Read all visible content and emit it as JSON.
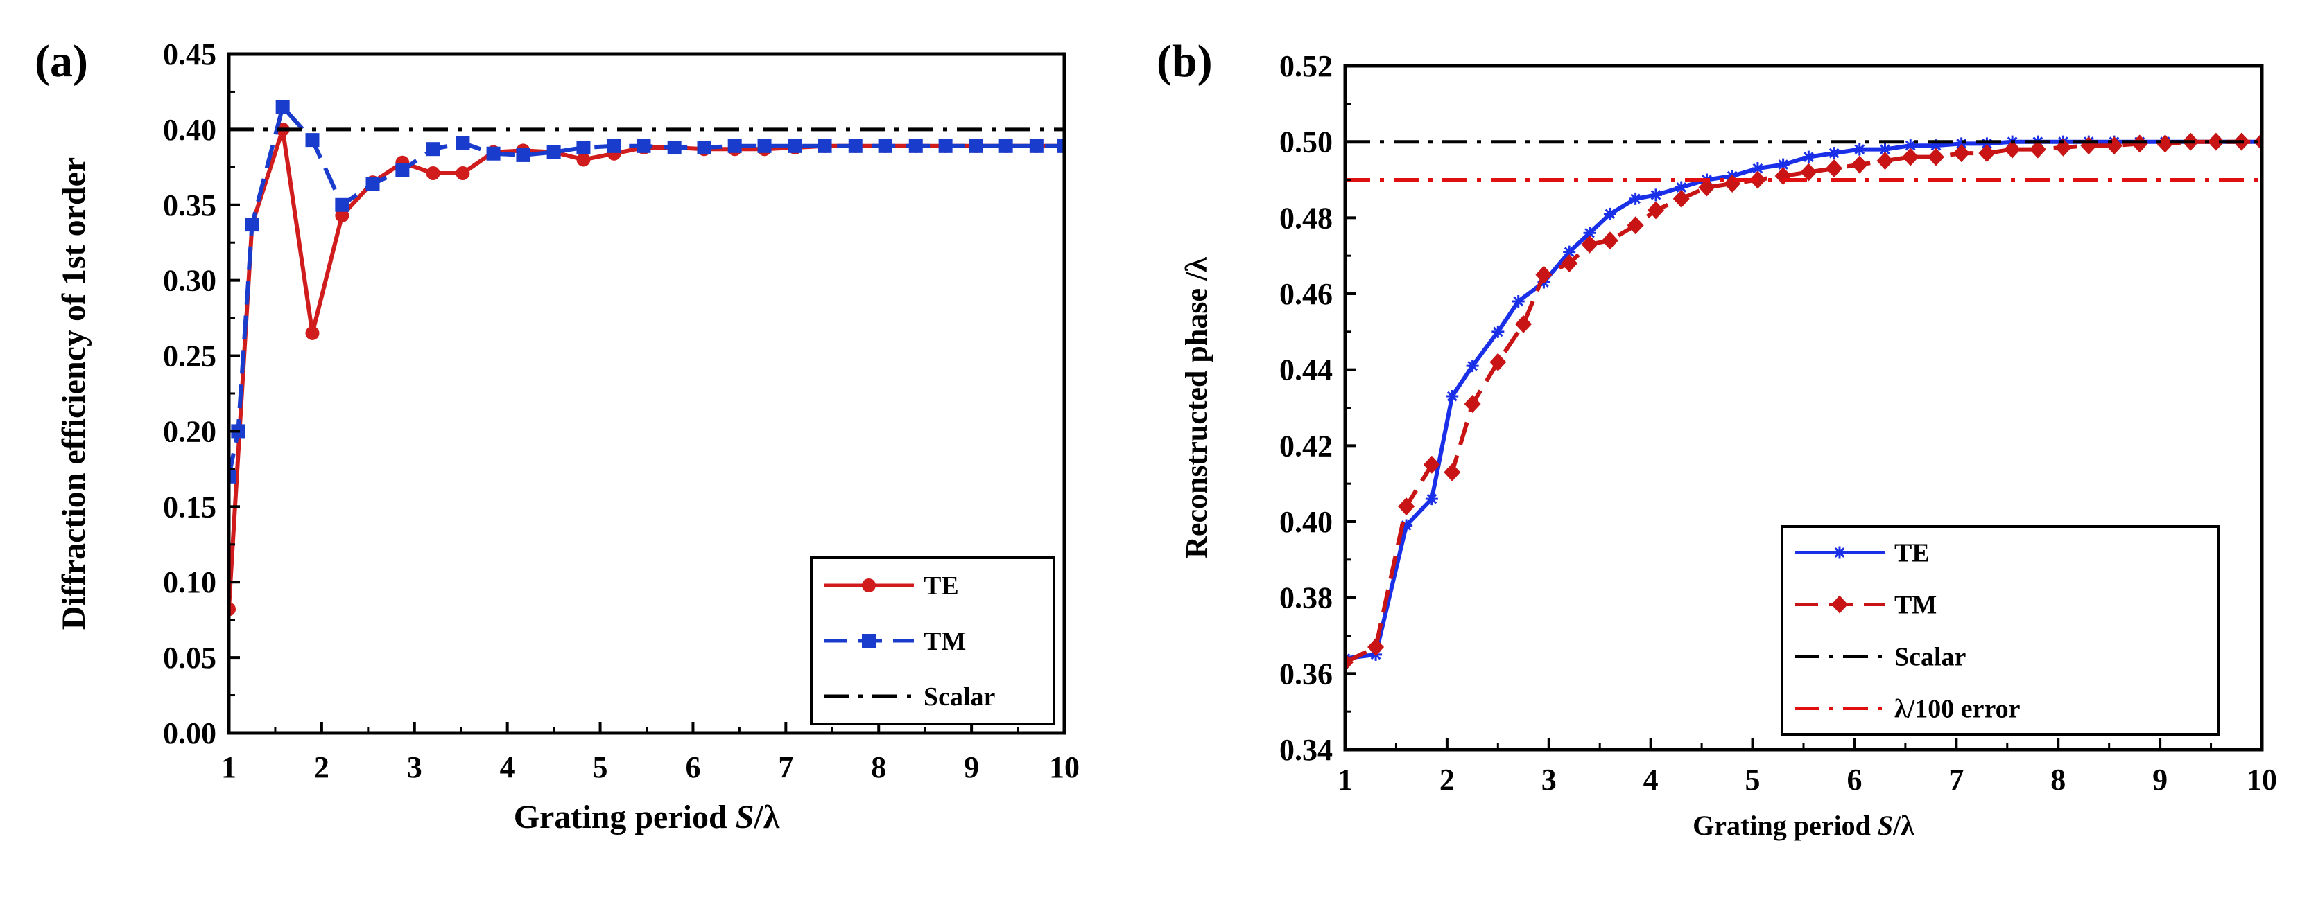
{
  "chart_data": [
    {
      "panel": "(a)",
      "type": "line",
      "xlabel": "Grating period S/λ",
      "xlabel_parts": [
        "Grating period ",
        "S",
        "/λ"
      ],
      "ylabel": "Diffraction efficiency of 1st order",
      "xlim": [
        1,
        10
      ],
      "ylim": [
        0,
        0.45
      ],
      "x_ticks": [
        1,
        2,
        3,
        4,
        5,
        6,
        7,
        8,
        9,
        10
      ],
      "y_ticks": [
        0.0,
        0.05,
        0.1,
        0.15,
        0.2,
        0.25,
        0.3,
        0.35,
        0.4,
        0.45
      ],
      "y_decimals": 2,
      "legend_position": "bottom-right",
      "series": [
        {
          "name": "TE",
          "color": "#d01c1c",
          "marker": "circle",
          "dash": "solid",
          "x": [
            1.0,
            1.25,
            1.58,
            1.9,
            2.22,
            2.55,
            2.87,
            3.2,
            3.52,
            3.85,
            4.17,
            4.5,
            4.82,
            5.15,
            5.47,
            5.8,
            6.12,
            6.45,
            6.77,
            7.1,
            7.42,
            7.75,
            8.07,
            8.4,
            8.72,
            9.05,
            9.37,
            9.7,
            10.0
          ],
          "values": [
            0.082,
            0.337,
            0.4,
            0.265,
            0.343,
            0.365,
            0.378,
            0.371,
            0.371,
            0.385,
            0.386,
            0.385,
            0.38,
            0.384,
            0.388,
            0.388,
            0.387,
            0.387,
            0.387,
            0.388,
            0.389,
            0.389,
            0.389,
            0.389,
            0.389,
            0.389,
            0.389,
            0.389,
            0.389
          ]
        },
        {
          "name": "TM",
          "color": "#1a3ccc",
          "marker": "square",
          "dash": "dashed",
          "x": [
            1.0,
            1.1,
            1.25,
            1.58,
            1.9,
            2.22,
            2.55,
            2.87,
            3.2,
            3.52,
            3.85,
            4.17,
            4.5,
            4.82,
            5.15,
            5.47,
            5.8,
            6.12,
            6.45,
            6.77,
            7.1,
            7.42,
            7.75,
            8.07,
            8.4,
            8.72,
            9.05,
            9.37,
            9.7,
            10.0
          ],
          "values": [
            0.17,
            0.2,
            0.337,
            0.415,
            0.393,
            0.35,
            0.364,
            0.373,
            0.387,
            0.391,
            0.384,
            0.383,
            0.385,
            0.388,
            0.389,
            0.389,
            0.388,
            0.388,
            0.389,
            0.389,
            0.389,
            0.389,
            0.389,
            0.389,
            0.389,
            0.389,
            0.389,
            0.389,
            0.389,
            0.389
          ]
        },
        {
          "name": "Scalar",
          "color": "#000000",
          "marker": "none",
          "dash": "dashdot",
          "x": [
            1,
            10
          ],
          "values": [
            0.4,
            0.4
          ]
        }
      ]
    },
    {
      "panel": "(b)",
      "type": "line",
      "xlabel": "Grating period S/λ",
      "xlabel_parts": [
        "Grating period ",
        "S",
        "/λ"
      ],
      "ylabel": "Reconstructed phase /λ",
      "xlim": [
        1,
        10
      ],
      "ylim": [
        0.34,
        0.52
      ],
      "x_ticks": [
        1,
        2,
        3,
        4,
        5,
        6,
        7,
        8,
        9,
        10
      ],
      "y_ticks": [
        0.34,
        0.36,
        0.38,
        0.4,
        0.42,
        0.44,
        0.46,
        0.48,
        0.5,
        0.52
      ],
      "y_decimals": 2,
      "legend_position": "bottom-right",
      "series": [
        {
          "name": "TE",
          "color": "#1a2fe8",
          "marker": "star",
          "dash": "solid",
          "x": [
            1.0,
            1.3,
            1.6,
            1.85,
            2.05,
            2.25,
            2.5,
            2.7,
            2.95,
            3.2,
            3.4,
            3.6,
            3.85,
            4.05,
            4.3,
            4.55,
            4.8,
            5.05,
            5.3,
            5.55,
            5.8,
            6.05,
            6.3,
            6.55,
            6.8,
            7.05,
            7.3,
            7.55,
            7.8,
            8.05,
            8.3,
            8.55,
            8.8,
            9.05,
            9.3,
            9.55,
            9.8,
            10.0
          ],
          "values": [
            0.364,
            0.365,
            0.399,
            0.406,
            0.433,
            0.441,
            0.45,
            0.458,
            0.463,
            0.471,
            0.476,
            0.481,
            0.485,
            0.486,
            0.488,
            0.49,
            0.491,
            0.493,
            0.494,
            0.496,
            0.497,
            0.498,
            0.498,
            0.499,
            0.499,
            0.4995,
            0.4995,
            0.5,
            0.5,
            0.5,
            0.5,
            0.5,
            0.5,
            0.5,
            0.5,
            0.5,
            0.5,
            0.5
          ]
        },
        {
          "name": "TM",
          "color": "#c81414",
          "marker": "diamond",
          "dash": "dashed",
          "x": [
            1.0,
            1.3,
            1.6,
            1.85,
            2.05,
            2.25,
            2.5,
            2.75,
            2.95,
            3.2,
            3.4,
            3.6,
            3.85,
            4.05,
            4.3,
            4.55,
            4.8,
            5.05,
            5.3,
            5.55,
            5.8,
            6.05,
            6.3,
            6.55,
            6.8,
            7.05,
            7.3,
            7.55,
            7.8,
            8.05,
            8.3,
            8.55,
            8.8,
            9.05,
            9.3,
            9.55,
            9.8,
            10.0
          ],
          "values": [
            0.363,
            0.367,
            0.404,
            0.415,
            0.413,
            0.431,
            0.442,
            0.452,
            0.465,
            0.468,
            0.473,
            0.474,
            0.478,
            0.482,
            0.485,
            0.488,
            0.489,
            0.49,
            0.491,
            0.492,
            0.493,
            0.494,
            0.495,
            0.496,
            0.496,
            0.497,
            0.497,
            0.498,
            0.498,
            0.4985,
            0.499,
            0.499,
            0.4995,
            0.4995,
            0.5,
            0.5,
            0.5,
            0.5
          ]
        },
        {
          "name": "Scalar",
          "color": "#000000",
          "marker": "none",
          "dash": "dashdot",
          "x": [
            1,
            10
          ],
          "values": [
            0.5,
            0.5
          ]
        },
        {
          "name": "λ/100 error",
          "color": "#e01010",
          "marker": "none",
          "dash": "dashdot",
          "x": [
            1,
            10
          ],
          "values": [
            0.49,
            0.49
          ]
        }
      ]
    }
  ]
}
